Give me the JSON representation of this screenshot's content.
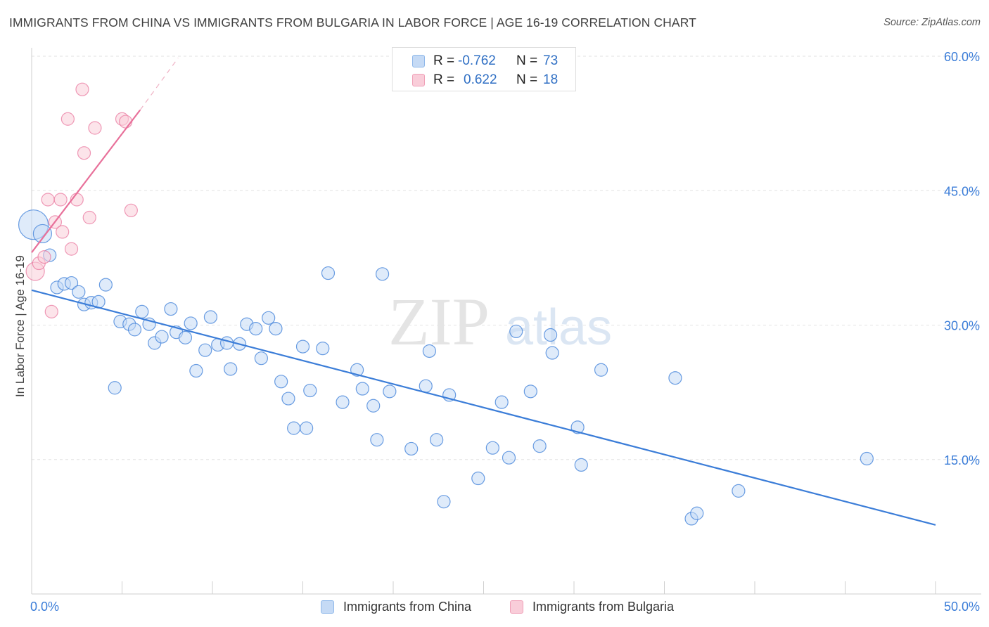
{
  "title": "IMMIGRANTS FROM CHINA VS IMMIGRANTS FROM BULGARIA IN LABOR FORCE | AGE 16-19 CORRELATION CHART",
  "source": "Source: ZipAtlas.com",
  "watermark": {
    "zip": "ZIP",
    "atlas": "atlas"
  },
  "legend_top": {
    "rows": [
      {
        "r_label": "R =",
        "r_value": "-0.762",
        "n_label": "N =",
        "n_value": "73",
        "color": "#8fb8ea",
        "fill": "#c5daf5"
      },
      {
        "r_label": "R =",
        "r_value": "0.622",
        "n_label": "N =",
        "n_value": "18",
        "color": "#f0a0b8",
        "fill": "#f9cdd9"
      }
    ]
  },
  "legend_bottom": [
    {
      "label": "Immigrants from China",
      "color": "#8fb8ea",
      "fill": "#c5daf5"
    },
    {
      "label": "Immigrants from Bulgaria",
      "color": "#f0a0b8",
      "fill": "#f9cdd9"
    }
  ],
  "chart_data": {
    "type": "scatter",
    "title": "IMMIGRANTS FROM CHINA VS IMMIGRANTS FROM BULGARIA IN LABOR FORCE | AGE 16-19 CORRELATION CHART",
    "xlabel": "",
    "ylabel": "In Labor Force | Age 16-19",
    "xlim": [
      0,
      50
    ],
    "ylim": [
      0,
      60
    ],
    "x_tick_labels": [
      "0.0%",
      "50.0%"
    ],
    "y_ticks": [
      15,
      30,
      45,
      60
    ],
    "y_tick_labels": [
      "15.0%",
      "30.0%",
      "45.0%",
      "60.0%"
    ],
    "grid": true,
    "legend_position": "bottom",
    "colors": {
      "china": "#3b7dd8",
      "bulgaria": "#e8709a",
      "china_fill": "#c5daf5",
      "bulgaria_fill": "#f9cdd9",
      "tick_label": "#3b7dd8"
    },
    "series": [
      {
        "name": "Immigrants from China",
        "points": [
          {
            "x": 0.1,
            "y": 41.2,
            "s": 3
          },
          {
            "x": 0.6,
            "y": 40.2,
            "s": 2
          },
          {
            "x": 1.0,
            "y": 37.8,
            "s": 1
          },
          {
            "x": 1.4,
            "y": 34.2,
            "s": 1
          },
          {
            "x": 1.8,
            "y": 34.6,
            "s": 1
          },
          {
            "x": 2.2,
            "y": 34.7,
            "s": 1
          },
          {
            "x": 2.6,
            "y": 33.7,
            "s": 1
          },
          {
            "x": 2.9,
            "y": 32.3,
            "s": 1
          },
          {
            "x": 3.3,
            "y": 32.5,
            "s": 1
          },
          {
            "x": 3.7,
            "y": 32.6,
            "s": 1
          },
          {
            "x": 4.1,
            "y": 34.5,
            "s": 1
          },
          {
            "x": 4.6,
            "y": 23.0,
            "s": 1
          },
          {
            "x": 4.9,
            "y": 30.4,
            "s": 1
          },
          {
            "x": 5.4,
            "y": 30.1,
            "s": 1
          },
          {
            "x": 5.7,
            "y": 29.5,
            "s": 1
          },
          {
            "x": 6.1,
            "y": 31.5,
            "s": 1
          },
          {
            "x": 6.5,
            "y": 30.1,
            "s": 1
          },
          {
            "x": 6.8,
            "y": 28.0,
            "s": 1
          },
          {
            "x": 7.2,
            "y": 28.7,
            "s": 1
          },
          {
            "x": 7.7,
            "y": 31.8,
            "s": 1
          },
          {
            "x": 8.0,
            "y": 29.2,
            "s": 1
          },
          {
            "x": 8.5,
            "y": 28.6,
            "s": 1
          },
          {
            "x": 8.8,
            "y": 30.2,
            "s": 1
          },
          {
            "x": 9.1,
            "y": 24.9,
            "s": 1
          },
          {
            "x": 9.6,
            "y": 27.2,
            "s": 1
          },
          {
            "x": 9.9,
            "y": 30.9,
            "s": 1
          },
          {
            "x": 10.3,
            "y": 27.8,
            "s": 1
          },
          {
            "x": 10.8,
            "y": 28.0,
            "s": 1
          },
          {
            "x": 11.0,
            "y": 25.1,
            "s": 1
          },
          {
            "x": 11.5,
            "y": 27.9,
            "s": 1
          },
          {
            "x": 11.9,
            "y": 30.1,
            "s": 1
          },
          {
            "x": 12.4,
            "y": 29.6,
            "s": 1
          },
          {
            "x": 12.7,
            "y": 26.3,
            "s": 1
          },
          {
            "x": 13.1,
            "y": 30.8,
            "s": 1
          },
          {
            "x": 13.5,
            "y": 29.6,
            "s": 1
          },
          {
            "x": 13.8,
            "y": 23.7,
            "s": 1
          },
          {
            "x": 14.2,
            "y": 21.8,
            "s": 1
          },
          {
            "x": 14.5,
            "y": 18.5,
            "s": 1
          },
          {
            "x": 15.2,
            "y": 18.5,
            "s": 1
          },
          {
            "x": 15.4,
            "y": 22.7,
            "s": 1
          },
          {
            "x": 15.0,
            "y": 27.6,
            "s": 1
          },
          {
            "x": 16.1,
            "y": 27.4,
            "s": 1
          },
          {
            "x": 16.4,
            "y": 35.8,
            "s": 1
          },
          {
            "x": 17.2,
            "y": 21.4,
            "s": 1
          },
          {
            "x": 18.0,
            "y": 25.0,
            "s": 1
          },
          {
            "x": 18.3,
            "y": 22.9,
            "s": 1
          },
          {
            "x": 18.9,
            "y": 21.0,
            "s": 1
          },
          {
            "x": 19.1,
            "y": 17.2,
            "s": 1
          },
          {
            "x": 19.4,
            "y": 35.7,
            "s": 1
          },
          {
            "x": 19.8,
            "y": 22.6,
            "s": 1
          },
          {
            "x": 21.0,
            "y": 16.2,
            "s": 1
          },
          {
            "x": 21.8,
            "y": 23.2,
            "s": 1
          },
          {
            "x": 22.0,
            "y": 27.1,
            "s": 1
          },
          {
            "x": 22.4,
            "y": 17.2,
            "s": 1
          },
          {
            "x": 22.8,
            "y": 10.3,
            "s": 1
          },
          {
            "x": 23.1,
            "y": 22.2,
            "s": 1
          },
          {
            "x": 24.7,
            "y": 12.9,
            "s": 1
          },
          {
            "x": 25.5,
            "y": 16.3,
            "s": 1
          },
          {
            "x": 26.0,
            "y": 21.4,
            "s": 1
          },
          {
            "x": 26.4,
            "y": 15.2,
            "s": 1
          },
          {
            "x": 26.8,
            "y": 29.3,
            "s": 1
          },
          {
            "x": 27.6,
            "y": 22.6,
            "s": 1
          },
          {
            "x": 28.1,
            "y": 16.5,
            "s": 1
          },
          {
            "x": 28.7,
            "y": 28.9,
            "s": 1
          },
          {
            "x": 28.8,
            "y": 26.9,
            "s": 1
          },
          {
            "x": 30.2,
            "y": 18.6,
            "s": 1
          },
          {
            "x": 30.4,
            "y": 14.4,
            "s": 1
          },
          {
            "x": 31.5,
            "y": 25.0,
            "s": 1
          },
          {
            "x": 35.6,
            "y": 24.1,
            "s": 1
          },
          {
            "x": 36.5,
            "y": 8.4,
            "s": 1
          },
          {
            "x": 36.8,
            "y": 9.0,
            "s": 1
          },
          {
            "x": 39.1,
            "y": 11.5,
            "s": 1
          },
          {
            "x": 46.2,
            "y": 15.1,
            "s": 1
          }
        ],
        "trend": {
          "x1": 0.0,
          "y1": 33.9,
          "x2": 50.0,
          "y2": 7.7
        }
      },
      {
        "name": "Immigrants from Bulgaria",
        "points": [
          {
            "x": 0.2,
            "y": 36.0,
            "s": 2
          },
          {
            "x": 0.4,
            "y": 36.9,
            "s": 1
          },
          {
            "x": 0.7,
            "y": 37.6,
            "s": 1
          },
          {
            "x": 0.9,
            "y": 44.0,
            "s": 1
          },
          {
            "x": 1.1,
            "y": 31.5,
            "s": 1
          },
          {
            "x": 1.3,
            "y": 41.5,
            "s": 1
          },
          {
            "x": 1.7,
            "y": 40.4,
            "s": 1
          },
          {
            "x": 1.6,
            "y": 44.0,
            "s": 1
          },
          {
            "x": 2.0,
            "y": 53.0,
            "s": 1
          },
          {
            "x": 2.2,
            "y": 38.5,
            "s": 1
          },
          {
            "x": 2.5,
            "y": 44.0,
            "s": 1
          },
          {
            "x": 2.9,
            "y": 49.2,
            "s": 1
          },
          {
            "x": 3.2,
            "y": 42.0,
            "s": 1
          },
          {
            "x": 2.8,
            "y": 56.3,
            "s": 1
          },
          {
            "x": 3.5,
            "y": 52.0,
            "s": 1
          },
          {
            "x": 5.0,
            "y": 53.0,
            "s": 1
          },
          {
            "x": 5.2,
            "y": 52.7,
            "s": 1
          },
          {
            "x": 5.5,
            "y": 42.8,
            "s": 1
          }
        ],
        "trend": {
          "x1": 0.0,
          "y1": 38.1,
          "x2": 6.0,
          "y2": 54.0
        },
        "trend_extension": {
          "x1": 6.0,
          "y1": 54.0,
          "x2": 8.1,
          "y2": 59.8
        }
      }
    ]
  }
}
